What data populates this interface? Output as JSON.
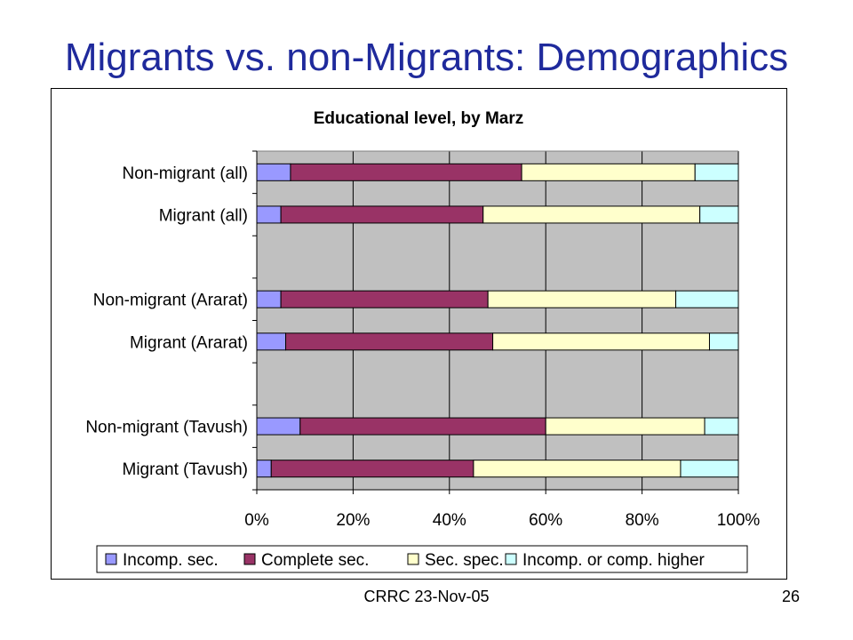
{
  "slide": {
    "title": "Migrants vs. non-Migrants: Demographics",
    "footer_left": "CRRC 23-Nov-05",
    "page_number": "26"
  },
  "chart_data": {
    "type": "bar",
    "orientation": "horizontal",
    "stacked": "percent",
    "title": "Educational level, by Marz",
    "xlim": [
      0,
      100
    ],
    "x_ticks": [
      "0%",
      "20%",
      "40%",
      "60%",
      "80%",
      "100%"
    ],
    "grid": true,
    "legend_position": "bottom",
    "categories": [
      "Non-migrant (all)",
      "Migrant (all)",
      "",
      "Non-migrant (Ararat)",
      "Migrant (Ararat)",
      "",
      "Non-migrant (Tavush)",
      "Migrant (Tavush)"
    ],
    "series": [
      {
        "name": "Incomp. sec.",
        "color": "#9999ff",
        "values": [
          7,
          5,
          null,
          5,
          6,
          null,
          9,
          3
        ]
      },
      {
        "name": "Complete sec.",
        "color": "#993366",
        "values": [
          48,
          42,
          null,
          43,
          43,
          null,
          51,
          42
        ]
      },
      {
        "name": "Sec. spec.",
        "color": "#ffffcc",
        "values": [
          36,
          45,
          null,
          39,
          45,
          null,
          33,
          43
        ]
      },
      {
        "name": "Incomp. or comp. higher",
        "color": "#ccffff",
        "values": [
          9,
          8,
          null,
          13,
          6,
          null,
          7,
          12
        ]
      }
    ]
  }
}
